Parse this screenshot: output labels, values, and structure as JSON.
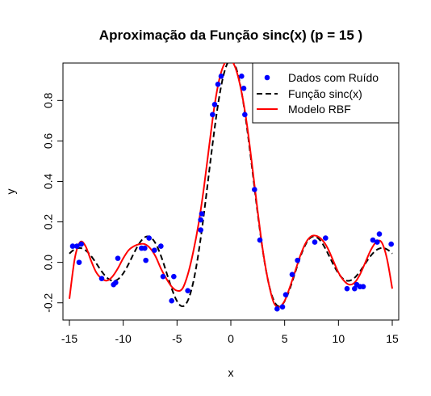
{
  "chart_data": {
    "type": "line",
    "title": "Aproximação da Função sinc(x) (p = 15 )",
    "xlabel": "x",
    "ylabel": "y",
    "xlim": [
      -15.6,
      15.6
    ],
    "ylim": [
      -0.285,
      0.985
    ],
    "xticks": [
      -15,
      -10,
      -5,
      0,
      5,
      10,
      15
    ],
    "xtick_labels": [
      "-15",
      "-10",
      "-5",
      "0",
      "5",
      "10",
      "15"
    ],
    "yticks": [
      -0.2,
      0.0,
      0.2,
      0.4,
      0.6,
      0.8
    ],
    "ytick_labels": [
      "-0.2",
      "0.0",
      "0.2",
      "0.4",
      "0.6",
      "0.8"
    ],
    "grid": false,
    "legend_position": "top-right",
    "colors": {
      "points": "#0000ff",
      "sinc": "#000000",
      "rbf": "#ff0000"
    },
    "series": [
      {
        "name": "Dados com Ruído",
        "kind": "points",
        "x": [
          -14.7,
          -14.3,
          -14.1,
          -13.9,
          -12.0,
          -10.9,
          -10.7,
          -10.5,
          -8.3,
          -8.0,
          -7.9,
          -7.6,
          -7.1,
          -6.5,
          -6.3,
          -5.5,
          -5.3,
          -4.0,
          -2.8,
          -2.8,
          -2.7,
          -1.7,
          -1.5,
          -1.2,
          -0.9,
          1.0,
          1.2,
          1.3,
          2.2,
          2.7,
          4.3,
          4.8,
          5.1,
          5.7,
          6.2,
          7.8,
          8.8,
          10.8,
          11.5,
          11.7,
          12.0,
          12.3,
          13.2,
          13.6,
          13.8,
          14.9
        ],
        "y": [
          0.08,
          0.08,
          0.0,
          0.09,
          -0.08,
          -0.11,
          -0.1,
          0.02,
          0.07,
          0.07,
          0.01,
          0.12,
          0.06,
          0.08,
          -0.07,
          -0.19,
          -0.07,
          -0.14,
          0.16,
          0.21,
          0.24,
          0.73,
          0.78,
          0.88,
          0.92,
          0.92,
          0.86,
          0.73,
          0.36,
          0.11,
          -0.23,
          -0.22,
          -0.16,
          -0.06,
          0.01,
          0.1,
          0.12,
          -0.13,
          -0.13,
          -0.11,
          -0.12,
          -0.12,
          0.11,
          0.1,
          0.14,
          0.09
        ]
      },
      {
        "name": "Função sinc(x)",
        "kind": "function",
        "function": "sin(x)/x"
      },
      {
        "name": "Modelo RBF",
        "kind": "curve",
        "x": [
          -15.0,
          -14.5,
          -14.0,
          -13.5,
          -13.0,
          -12.5,
          -12.0,
          -11.5,
          -11.0,
          -10.5,
          -10.0,
          -9.5,
          -9.0,
          -8.5,
          -8.0,
          -7.5,
          -7.0,
          -6.5,
          -6.0,
          -5.5,
          -5.0,
          -4.5,
          -4.0,
          -3.5,
          -3.0,
          -2.5,
          -2.0,
          -1.5,
          -1.0,
          -0.5,
          0.0,
          0.5,
          1.0,
          1.5,
          2.0,
          2.5,
          3.0,
          3.5,
          4.0,
          4.5,
          5.0,
          5.5,
          6.0,
          6.5,
          7.0,
          7.5,
          8.0,
          8.5,
          9.0,
          9.5,
          10.0,
          10.5,
          11.0,
          11.5,
          12.0,
          12.5,
          13.0,
          13.5,
          14.0,
          14.5,
          15.0
        ],
        "y": [
          -0.18,
          0.02,
          0.1,
          0.08,
          0.01,
          -0.05,
          -0.08,
          -0.09,
          -0.07,
          -0.03,
          0.02,
          0.06,
          0.08,
          0.09,
          0.09,
          0.07,
          0.03,
          -0.03,
          -0.08,
          -0.12,
          -0.14,
          -0.13,
          -0.06,
          0.05,
          0.19,
          0.37,
          0.58,
          0.78,
          0.92,
          0.99,
          1.0,
          0.95,
          0.84,
          0.68,
          0.47,
          0.25,
          0.05,
          -0.1,
          -0.2,
          -0.22,
          -0.19,
          -0.12,
          -0.04,
          0.04,
          0.1,
          0.13,
          0.13,
          0.11,
          0.07,
          0.01,
          -0.05,
          -0.09,
          -0.11,
          -0.1,
          -0.06,
          0.0,
          0.06,
          0.1,
          0.1,
          0.02,
          -0.13
        ]
      }
    ]
  }
}
